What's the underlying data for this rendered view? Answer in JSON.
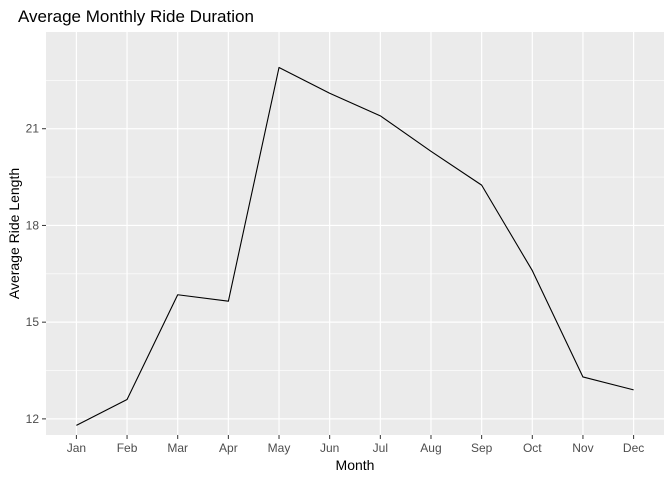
{
  "chart_data": {
    "type": "line",
    "title": "Average Monthly Ride Duration",
    "xlabel": "Month",
    "ylabel": "Average Ride Length",
    "categories": [
      "Jan",
      "Feb",
      "Mar",
      "Apr",
      "May",
      "Jun",
      "Jul",
      "Aug",
      "Sep",
      "Oct",
      "Nov",
      "Dec"
    ],
    "series": [
      {
        "values": [
          11.8,
          12.6,
          15.85,
          15.65,
          22.9,
          22.1,
          21.4,
          20.3,
          19.25,
          16.6,
          13.3,
          12.9
        ]
      }
    ],
    "yticks": [
      12,
      15,
      18,
      21
    ],
    "ylim": [
      11.5,
      24.0
    ],
    "grid": true,
    "line_color": "#000000",
    "panel_color": "#EBEBEB",
    "grid_color": "#FFFFFF"
  }
}
